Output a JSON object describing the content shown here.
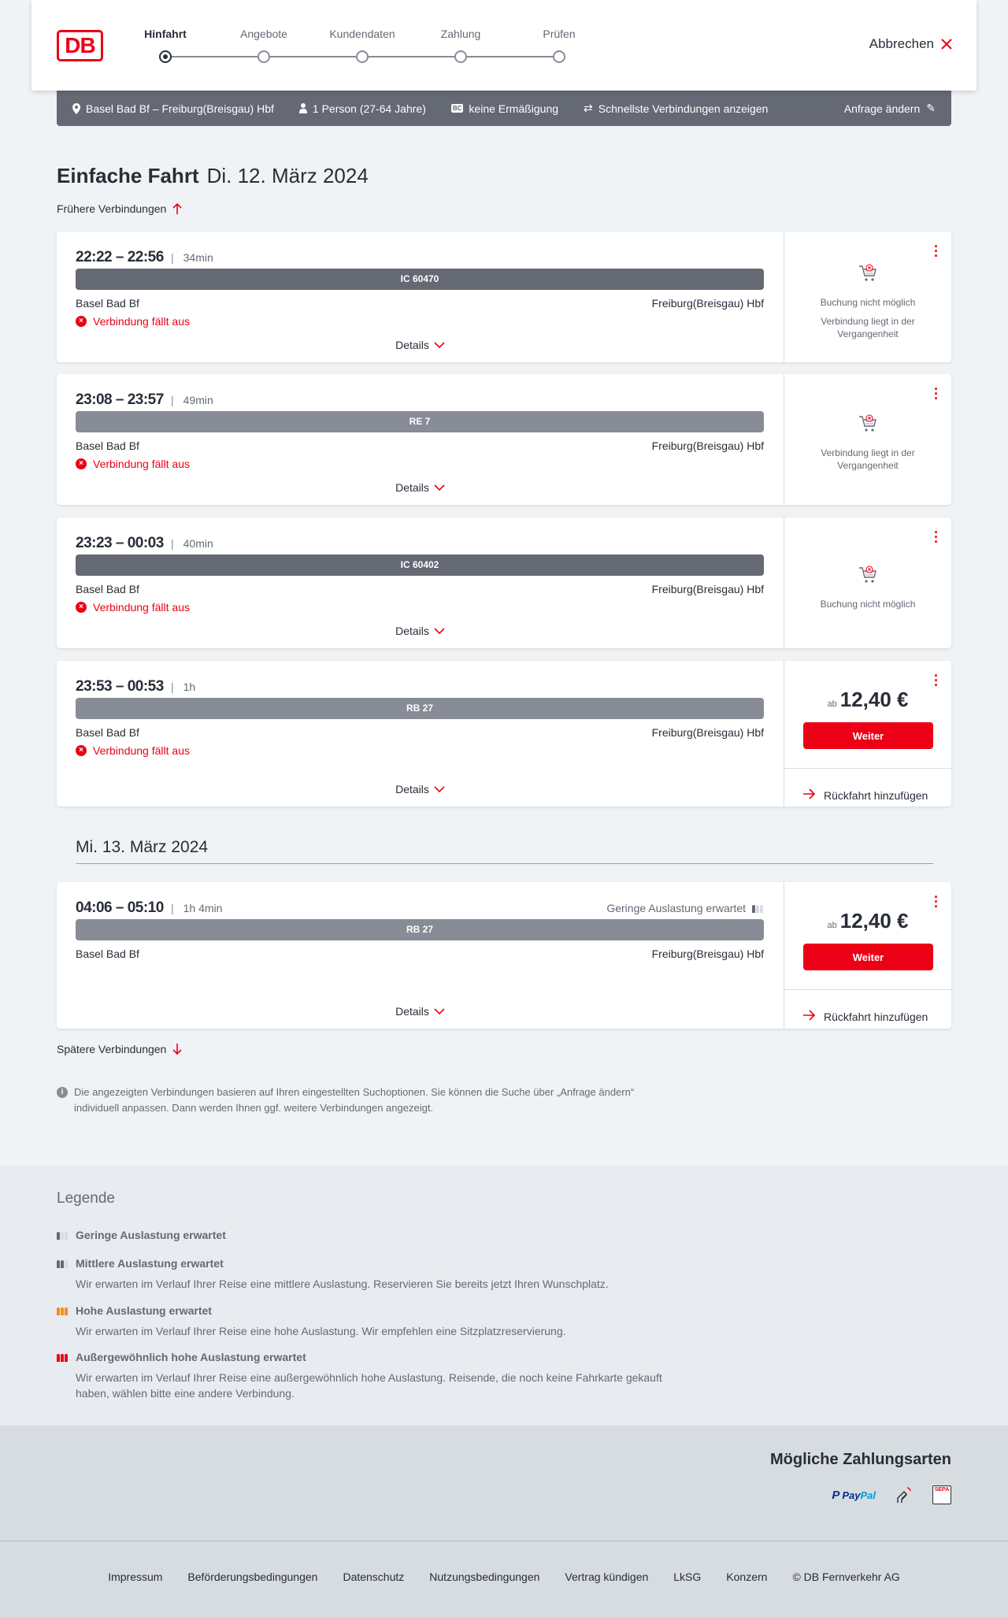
{
  "header": {
    "logo_text": "DB",
    "steps": [
      {
        "label": "Hinfahrt",
        "active": true
      },
      {
        "label": "Angebote"
      },
      {
        "label": "Kundendaten"
      },
      {
        "label": "Zahlung"
      },
      {
        "label": "Prüfen"
      }
    ],
    "cancel_label": "Abbrechen"
  },
  "infobar": {
    "route": "Basel Bad Bf – Freiburg(Breisgau) Hbf",
    "persons": "1 Person (27-64 Jahre)",
    "discount": "keine Ermäßigung",
    "discount_badge": "BC",
    "fastest": "Schnellste Verbindungen anzeigen",
    "edit": "Anfrage ändern"
  },
  "title": {
    "type": "Einfache Fahrt",
    "date": "Di. 12. März 2024"
  },
  "earlier": "Frühere Verbindungen",
  "later": "Spätere Verbindungen",
  "second_date": "Mi. 13. März 2024",
  "colors": {
    "accent": "#ec0016",
    "bar_ic": "#646973",
    "bar_regional": "#878c96",
    "infobar": "#646973"
  },
  "connections": [
    {
      "time": "22:22 – 22:56",
      "duration": "34min",
      "train": "IC 60470",
      "train_type": "ic",
      "from": "Basel Bad Bf",
      "to": "Freiburg(Breisgau) Hbf",
      "status": "Verbindung fällt aus",
      "details": "Details",
      "right_type": "unavailable",
      "right_texts": [
        "Buchung nicht möglich",
        "Verbindung liegt in der Vergangenheit"
      ]
    },
    {
      "time": "23:08 – 23:57",
      "duration": "49min",
      "train": "RE 7",
      "train_type": "regional",
      "from": "Basel Bad Bf",
      "to": "Freiburg(Breisgau) Hbf",
      "status": "Verbindung fällt aus",
      "details": "Details",
      "right_type": "unavailable",
      "right_texts": [
        "Verbindung liegt in der Vergangenheit"
      ]
    },
    {
      "time": "23:23 – 00:03",
      "duration": "40min",
      "train": "IC 60402",
      "train_type": "ic",
      "from": "Basel Bad Bf",
      "to": "Freiburg(Breisgau) Hbf",
      "status": "Verbindung fällt aus",
      "details": "Details",
      "right_type": "unavailable",
      "right_texts": [
        "Buchung nicht möglich"
      ]
    },
    {
      "time": "23:53 – 00:53",
      "duration": "1h",
      "train": "RB 27",
      "train_type": "regional",
      "from": "Basel Bad Bf",
      "to": "Freiburg(Breisgau) Hbf",
      "status": "Verbindung fällt aus",
      "details": "Details",
      "right_type": "price",
      "price_prefix": "ab",
      "price": "12,40 €",
      "button": "Weiter",
      "return": "Rückfahrt hinzufügen"
    },
    {
      "time": "04:06 – 05:10",
      "duration": "1h 4min",
      "train": "RB 27",
      "train_type": "regional",
      "from": "Basel Bad Bf",
      "to": "Freiburg(Breisgau) Hbf",
      "occupancy": "Geringe Auslastung erwartet",
      "details": "Details",
      "right_type": "price",
      "price_prefix": "ab",
      "price": "12,40 €",
      "button": "Weiter",
      "return": "Rückfahrt hinzufügen"
    }
  ],
  "note": "Die angezeigten Verbindungen basieren auf Ihren eingestellten Suchoptionen. Sie können die Suche über „Anfrage ändern“ individuell anpassen. Dann werden Ihnen ggf. weitere Verbindungen angezeigt.",
  "legend": {
    "title": "Legende",
    "items": [
      {
        "label": "Geringe Auslastung erwartet",
        "level": 1,
        "color": "#646973"
      },
      {
        "label": "Mittlere Auslastung erwartet",
        "level": 2,
        "color": "#646973",
        "desc": "Wir erwarten im Verlauf Ihrer Reise eine mittlere Auslastung. Reservieren Sie bereits jetzt Ihren Wunschplatz."
      },
      {
        "label": "Hohe Auslastung erwartet",
        "level": 3,
        "color": "#f39200",
        "desc": "Wir erwarten im Verlauf Ihrer Reise eine hohe Auslastung. Wir empfehlen eine Sitzplatzreservierung."
      },
      {
        "label": "Außergewöhnlich hohe Auslastung erwartet",
        "level": 4,
        "color": "#ec0016",
        "desc": "Wir erwarten im Verlauf Ihrer Reise eine außergewöhnlich hohe Auslastung. Reisende, die noch keine Fahrkarte gekauft haben, wählen bitte eine andere Verbindung."
      }
    ]
  },
  "payment": {
    "title": "Mögliche Zahlungsarten",
    "paypal": "PayPal",
    "sepa": "SEPA"
  },
  "footer": [
    "Impressum",
    "Beförderungsbedingungen",
    "Datenschutz",
    "Nutzungsbedingungen",
    "Vertrag kündigen",
    "LkSG",
    "Konzern",
    "© DB Fernverkehr AG"
  ]
}
